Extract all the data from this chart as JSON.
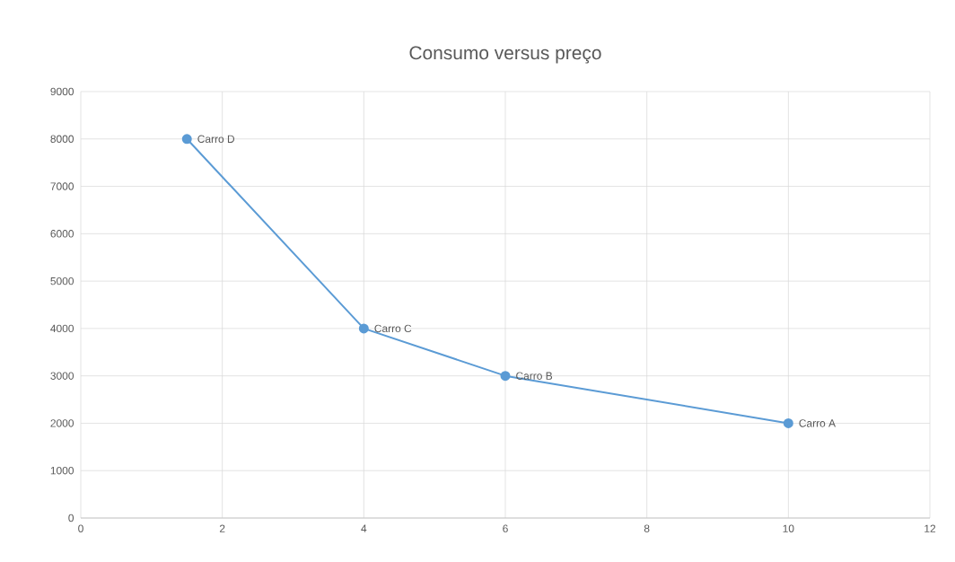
{
  "chart_data": {
    "type": "line",
    "title": "Consumo versus preço",
    "x": [
      1.5,
      4,
      6,
      10
    ],
    "series": [
      {
        "color": "#5b9bd5",
        "values": [
          8000,
          4000,
          3000,
          2000
        ]
      }
    ],
    "xlim": [
      0,
      12
    ],
    "xticks": [
      0,
      2,
      4,
      6,
      8,
      10,
      12
    ],
    "ylim": [
      0,
      9000
    ],
    "yticks": [
      0,
      1000,
      2000,
      3000,
      4000,
      5000,
      6000,
      7000,
      8000,
      9000
    ],
    "grid": true,
    "marker": "circle",
    "line_style": "solid",
    "annotations": [
      {
        "text": "Carro D",
        "x": 1.5,
        "y": 8000
      },
      {
        "text": "Carro C",
        "x": 4,
        "y": 4000
      },
      {
        "text": "Carro B",
        "x": 6,
        "y": 3000
      },
      {
        "text": "Carro A",
        "x": 10,
        "y": 2000
      }
    ]
  }
}
